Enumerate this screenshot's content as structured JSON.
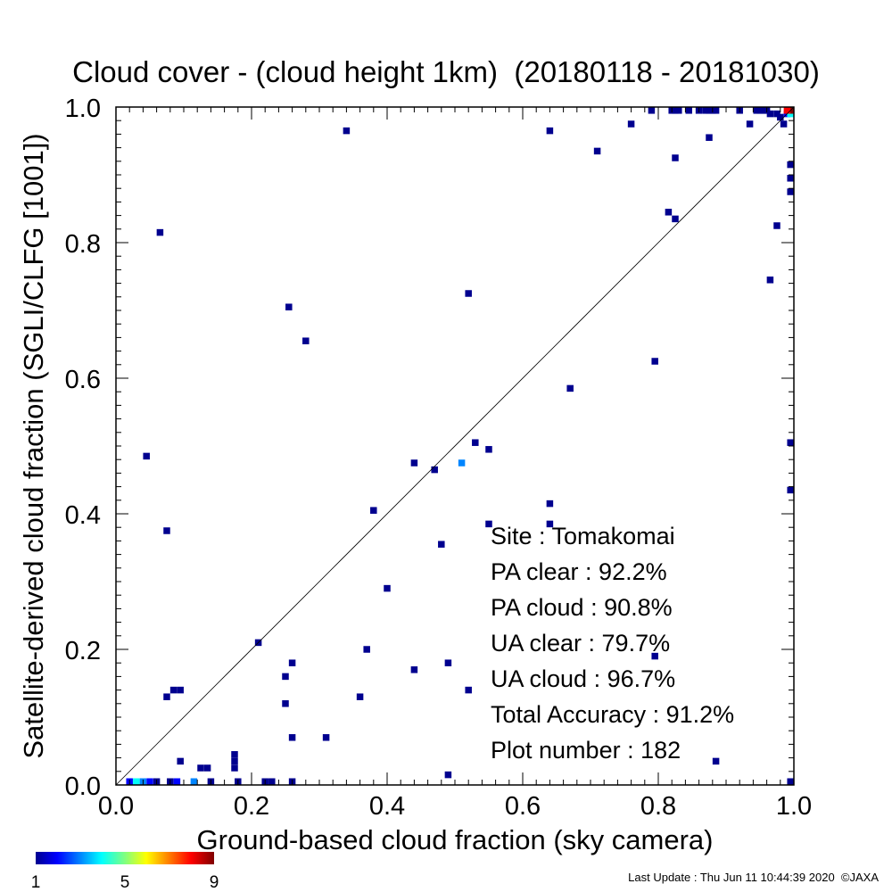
{
  "chart_data": {
    "type": "scatter",
    "title": "Cloud cover - (cloud height 1km)  (20180118 - 20181030)",
    "xlabel": "Ground-based cloud fraction (sky camera)",
    "ylabel": "Satellite-derived cloud fraction (SGLI/CLFG [1001])",
    "xlim": [
      0,
      1
    ],
    "ylim": [
      0,
      1
    ],
    "x_ticks": [
      "0.0",
      "0.2",
      "0.4",
      "0.6",
      "0.8",
      "1.0"
    ],
    "y_ticks": [
      "0.0",
      "0.2",
      "0.4",
      "0.6",
      "0.8",
      "1.0"
    ],
    "diagonal_line": true,
    "colorbar": {
      "min": 1,
      "max": 9,
      "tick_labels": [
        "1",
        "5",
        "9"
      ]
    },
    "stats": [
      "Site : Tomakomai",
      "PA clear :  92.2%",
      "PA cloud :  90.8%",
      "UA clear :  79.7%",
      "UA cloud :  96.7%",
      "Total Accuracy :  91.2%",
      "Plot number :      182"
    ],
    "points": [
      {
        "x": 0.34,
        "y": 0.965,
        "c": 1
      },
      {
        "x": 0.64,
        "y": 0.965,
        "c": 1
      },
      {
        "x": 0.79,
        "y": 0.995,
        "c": 1
      },
      {
        "x": 0.82,
        "y": 0.995,
        "c": 1
      },
      {
        "x": 0.825,
        "y": 0.995,
        "c": 1
      },
      {
        "x": 0.83,
        "y": 0.995,
        "c": 1
      },
      {
        "x": 0.845,
        "y": 0.995,
        "c": 1
      },
      {
        "x": 0.86,
        "y": 0.995,
        "c": 1
      },
      {
        "x": 0.87,
        "y": 0.995,
        "c": 1
      },
      {
        "x": 0.875,
        "y": 0.995,
        "c": 1
      },
      {
        "x": 0.88,
        "y": 0.995,
        "c": 1
      },
      {
        "x": 0.885,
        "y": 0.995,
        "c": 1
      },
      {
        "x": 0.92,
        "y": 0.995,
        "c": 1
      },
      {
        "x": 0.945,
        "y": 0.995,
        "c": 1
      },
      {
        "x": 0.95,
        "y": 0.995,
        "c": 1
      },
      {
        "x": 0.955,
        "y": 0.995,
        "c": 1
      },
      {
        "x": 0.96,
        "y": 0.995,
        "c": 1
      },
      {
        "x": 0.965,
        "y": 0.99,
        "c": 1
      },
      {
        "x": 0.975,
        "y": 0.99,
        "c": 1
      },
      {
        "x": 0.98,
        "y": 0.985,
        "c": 1
      },
      {
        "x": 0.985,
        "y": 0.975,
        "c": 1
      },
      {
        "x": 0.99,
        "y": 0.99,
        "c": 2
      },
      {
        "x": 0.995,
        "y": 0.99,
        "c": 4
      },
      {
        "x": 0.997,
        "y": 0.997,
        "c": 9
      },
      {
        "x": 0.99,
        "y": 0.997,
        "c": 8
      },
      {
        "x": 0.935,
        "y": 0.975,
        "c": 1
      },
      {
        "x": 0.76,
        "y": 0.975,
        "c": 1
      },
      {
        "x": 0.71,
        "y": 0.935,
        "c": 1
      },
      {
        "x": 0.875,
        "y": 0.955,
        "c": 1
      },
      {
        "x": 0.825,
        "y": 0.925,
        "c": 1
      },
      {
        "x": 0.995,
        "y": 0.915,
        "c": 1
      },
      {
        "x": 0.995,
        "y": 0.895,
        "c": 1
      },
      {
        "x": 0.995,
        "y": 0.875,
        "c": 1
      },
      {
        "x": 0.815,
        "y": 0.845,
        "c": 1
      },
      {
        "x": 0.825,
        "y": 0.835,
        "c": 1
      },
      {
        "x": 0.975,
        "y": 0.825,
        "c": 1
      },
      {
        "x": 0.065,
        "y": 0.815,
        "c": 1
      },
      {
        "x": 0.965,
        "y": 0.745,
        "c": 1
      },
      {
        "x": 0.52,
        "y": 0.725,
        "c": 1
      },
      {
        "x": 0.255,
        "y": 0.705,
        "c": 1
      },
      {
        "x": 0.28,
        "y": 0.655,
        "c": 1
      },
      {
        "x": 0.795,
        "y": 0.625,
        "c": 1
      },
      {
        "x": 0.67,
        "y": 0.585,
        "c": 1
      },
      {
        "x": 0.995,
        "y": 0.505,
        "c": 1
      },
      {
        "x": 0.53,
        "y": 0.505,
        "c": 1
      },
      {
        "x": 0.55,
        "y": 0.495,
        "c": 1
      },
      {
        "x": 0.045,
        "y": 0.485,
        "c": 1
      },
      {
        "x": 0.44,
        "y": 0.475,
        "c": 1
      },
      {
        "x": 0.51,
        "y": 0.475,
        "c": 3
      },
      {
        "x": 0.47,
        "y": 0.465,
        "c": 1
      },
      {
        "x": 0.995,
        "y": 0.435,
        "c": 1
      },
      {
        "x": 0.64,
        "y": 0.415,
        "c": 1
      },
      {
        "x": 0.38,
        "y": 0.405,
        "c": 1
      },
      {
        "x": 0.55,
        "y": 0.385,
        "c": 1
      },
      {
        "x": 0.64,
        "y": 0.385,
        "c": 1
      },
      {
        "x": 0.075,
        "y": 0.375,
        "c": 1
      },
      {
        "x": 0.48,
        "y": 0.355,
        "c": 1
      },
      {
        "x": 0.4,
        "y": 0.29,
        "c": 1
      },
      {
        "x": 0.21,
        "y": 0.21,
        "c": 1
      },
      {
        "x": 0.37,
        "y": 0.2,
        "c": 1
      },
      {
        "x": 0.795,
        "y": 0.19,
        "c": 1
      },
      {
        "x": 0.26,
        "y": 0.18,
        "c": 1
      },
      {
        "x": 0.49,
        "y": 0.18,
        "c": 1
      },
      {
        "x": 0.44,
        "y": 0.17,
        "c": 1
      },
      {
        "x": 0.25,
        "y": 0.16,
        "c": 1
      },
      {
        "x": 0.085,
        "y": 0.14,
        "c": 1
      },
      {
        "x": 0.095,
        "y": 0.14,
        "c": 1
      },
      {
        "x": 0.52,
        "y": 0.14,
        "c": 1
      },
      {
        "x": 0.075,
        "y": 0.13,
        "c": 1
      },
      {
        "x": 0.36,
        "y": 0.13,
        "c": 1
      },
      {
        "x": 0.25,
        "y": 0.12,
        "c": 1
      },
      {
        "x": 0.26,
        "y": 0.07,
        "c": 1
      },
      {
        "x": 0.31,
        "y": 0.07,
        "c": 1
      },
      {
        "x": 0.175,
        "y": 0.045,
        "c": 1
      },
      {
        "x": 0.175,
        "y": 0.035,
        "c": 1
      },
      {
        "x": 0.095,
        "y": 0.035,
        "c": 1
      },
      {
        "x": 0.885,
        "y": 0.035,
        "c": 1
      },
      {
        "x": 0.175,
        "y": 0.025,
        "c": 1
      },
      {
        "x": 0.125,
        "y": 0.025,
        "c": 1
      },
      {
        "x": 0.135,
        "y": 0.025,
        "c": 1
      },
      {
        "x": 0.49,
        "y": 0.015,
        "c": 1
      },
      {
        "x": 0.02,
        "y": 0.003,
        "c": 2
      },
      {
        "x": 0.03,
        "y": 0.003,
        "c": 4
      },
      {
        "x": 0.04,
        "y": 0.003,
        "c": 3
      },
      {
        "x": 0.05,
        "y": 0.003,
        "c": 2
      },
      {
        "x": 0.06,
        "y": 0.003,
        "c": 1
      },
      {
        "x": 0.08,
        "y": 0.003,
        "c": 1
      },
      {
        "x": 0.09,
        "y": 0.003,
        "c": 2
      },
      {
        "x": 0.115,
        "y": 0.003,
        "c": 3
      },
      {
        "x": 0.14,
        "y": 0.003,
        "c": 1
      },
      {
        "x": 0.18,
        "y": 0.003,
        "c": 1
      },
      {
        "x": 0.22,
        "y": 0.003,
        "c": 1
      },
      {
        "x": 0.23,
        "y": 0.003,
        "c": 1
      },
      {
        "x": 0.26,
        "y": 0.003,
        "c": 1
      },
      {
        "x": 0.995,
        "y": 0.003,
        "c": 1
      }
    ]
  },
  "footer": {
    "last_update": "Last Update : Thu Jun 11 10:44:39 2020  ©JAXA"
  }
}
